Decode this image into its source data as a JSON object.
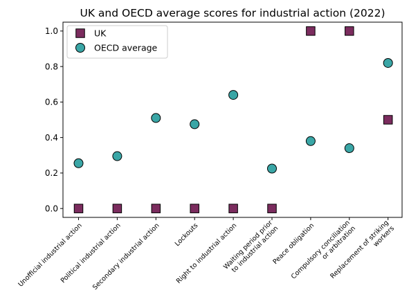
{
  "chart_data": {
    "type": "scatter",
    "title": "UK and OECD average scores for industrial action (2022)",
    "xlabel": "",
    "ylabel": "",
    "ylim": [
      -0.05,
      1.05
    ],
    "yticks": [
      "0.0",
      "0.2",
      "0.4",
      "0.6",
      "0.8",
      "1.0"
    ],
    "ytick_values": [
      0.0,
      0.2,
      0.4,
      0.6,
      0.8,
      1.0
    ],
    "grid": false,
    "legend_position": "top-left",
    "categories": [
      [
        "Unofficial industrial action"
      ],
      [
        "Political industrial action"
      ],
      [
        "Secondary industrial action"
      ],
      [
        "Lockouts"
      ],
      [
        "Right to industrial action"
      ],
      [
        "Waiting period prior",
        "to industrial action"
      ],
      [
        "Peace obligation"
      ],
      [
        "Compulsory conciliation",
        "or arbitration"
      ],
      [
        "Replacement of striking",
        "workers"
      ]
    ],
    "series": [
      {
        "name": "UK",
        "marker": "square",
        "color": "#7b2c5e",
        "values": [
          0.0,
          0.0,
          0.0,
          0.0,
          0.0,
          0.0,
          1.0,
          1.0,
          0.5
        ]
      },
      {
        "name": "OECD average",
        "marker": "circle",
        "color": "#3aa6a6",
        "values": [
          0.255,
          0.295,
          0.51,
          0.475,
          0.64,
          0.225,
          0.38,
          0.34,
          0.82
        ]
      }
    ]
  }
}
